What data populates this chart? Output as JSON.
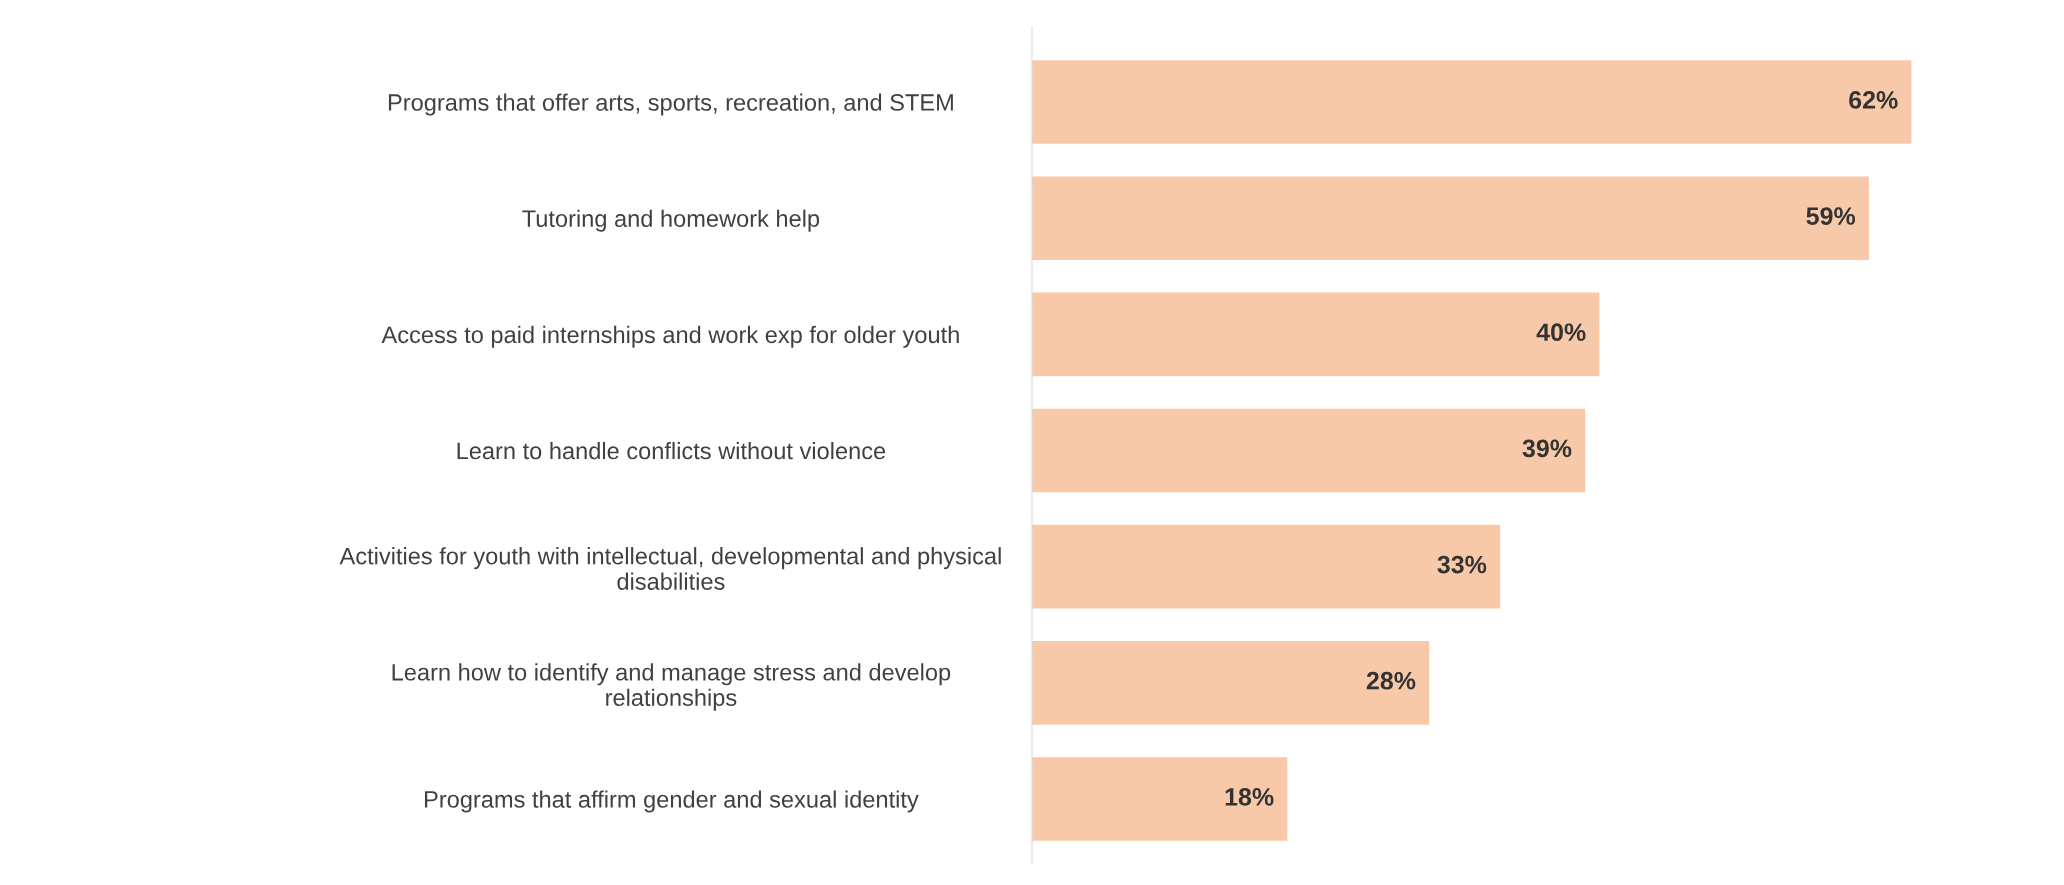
{
  "chart_data": {
    "type": "bar",
    "orientation": "horizontal",
    "categories": [
      "Programs that offer arts, sports, recreation, and STEM",
      "Tutoring and homework help",
      "Access to paid internships and work exp for older youth",
      "Learn to handle conflicts without violence",
      "Activities for youth with intellectual, developmental and physical\ndisabilities",
      "Learn how to identify and manage stress and develop\nrelationships",
      "Programs that affirm gender and sexual identity"
    ],
    "values": [
      62,
      59,
      40,
      39,
      33,
      28,
      18
    ],
    "value_labels": [
      "62%",
      "59%",
      "40%",
      "39%",
      "33%",
      "28%",
      "18%"
    ],
    "color": "#f8c9a8",
    "grid": false,
    "legend": false,
    "tick_labels": "y"
  }
}
